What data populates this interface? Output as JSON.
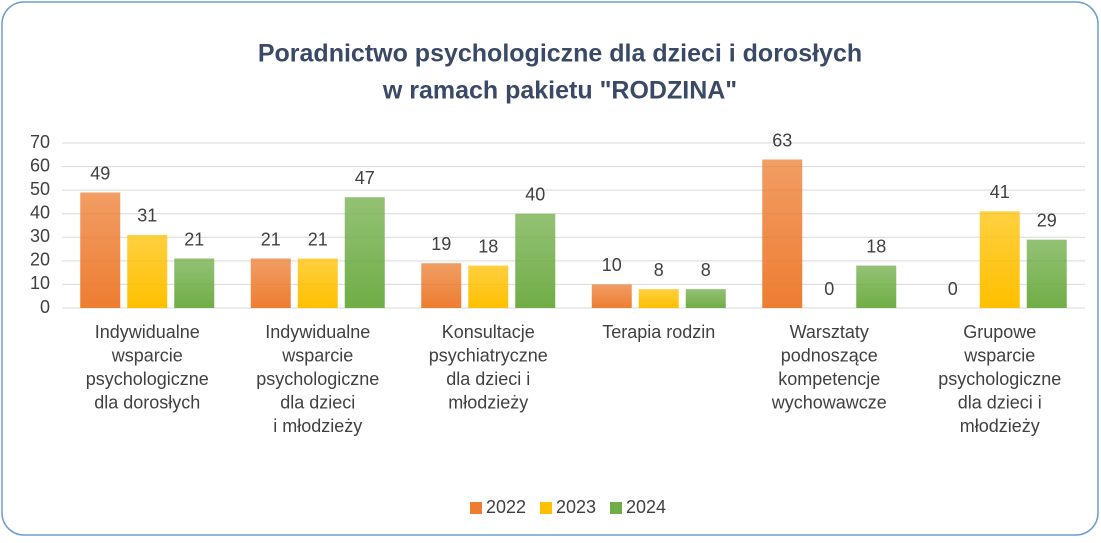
{
  "chart_data": {
    "type": "bar",
    "title": [
      "Poradnictwo psychologiczne dla dzieci i dorosłych",
      "w ramach pakietu \"RODZINA\""
    ],
    "categories": [
      [
        "Indywidualne",
        "wsparcie",
        "psychologiczne",
        "dla dorosłych"
      ],
      [
        "Indywidualne",
        "wsparcie",
        "psychologiczne",
        "dla dzieci",
        "i młodzieży"
      ],
      [
        "Konsultacje",
        "psychiatryczne",
        "dla dzieci i",
        "młodzieży"
      ],
      [
        "Terapia rodzin"
      ],
      [
        "Warsztaty",
        "podnoszące",
        "kompetencje",
        "wychowawcze"
      ],
      [
        "Grupowe",
        "wsparcie",
        "psychologiczne",
        "dla dzieci i",
        "młodzieży"
      ]
    ],
    "series": [
      {
        "name": "2022",
        "color": "#ed7d31",
        "values": [
          49,
          21,
          19,
          10,
          63,
          0
        ]
      },
      {
        "name": "2023",
        "color": "#ffc000",
        "values": [
          31,
          21,
          18,
          8,
          0,
          41
        ]
      },
      {
        "name": "2024",
        "color": "#70ad47",
        "values": [
          21,
          47,
          40,
          8,
          18,
          29
        ]
      }
    ],
    "ylim": [
      0,
      70
    ],
    "yticks": [
      0,
      10,
      20,
      30,
      40,
      50,
      60,
      70
    ],
    "grid": true,
    "legend": "bottom"
  }
}
